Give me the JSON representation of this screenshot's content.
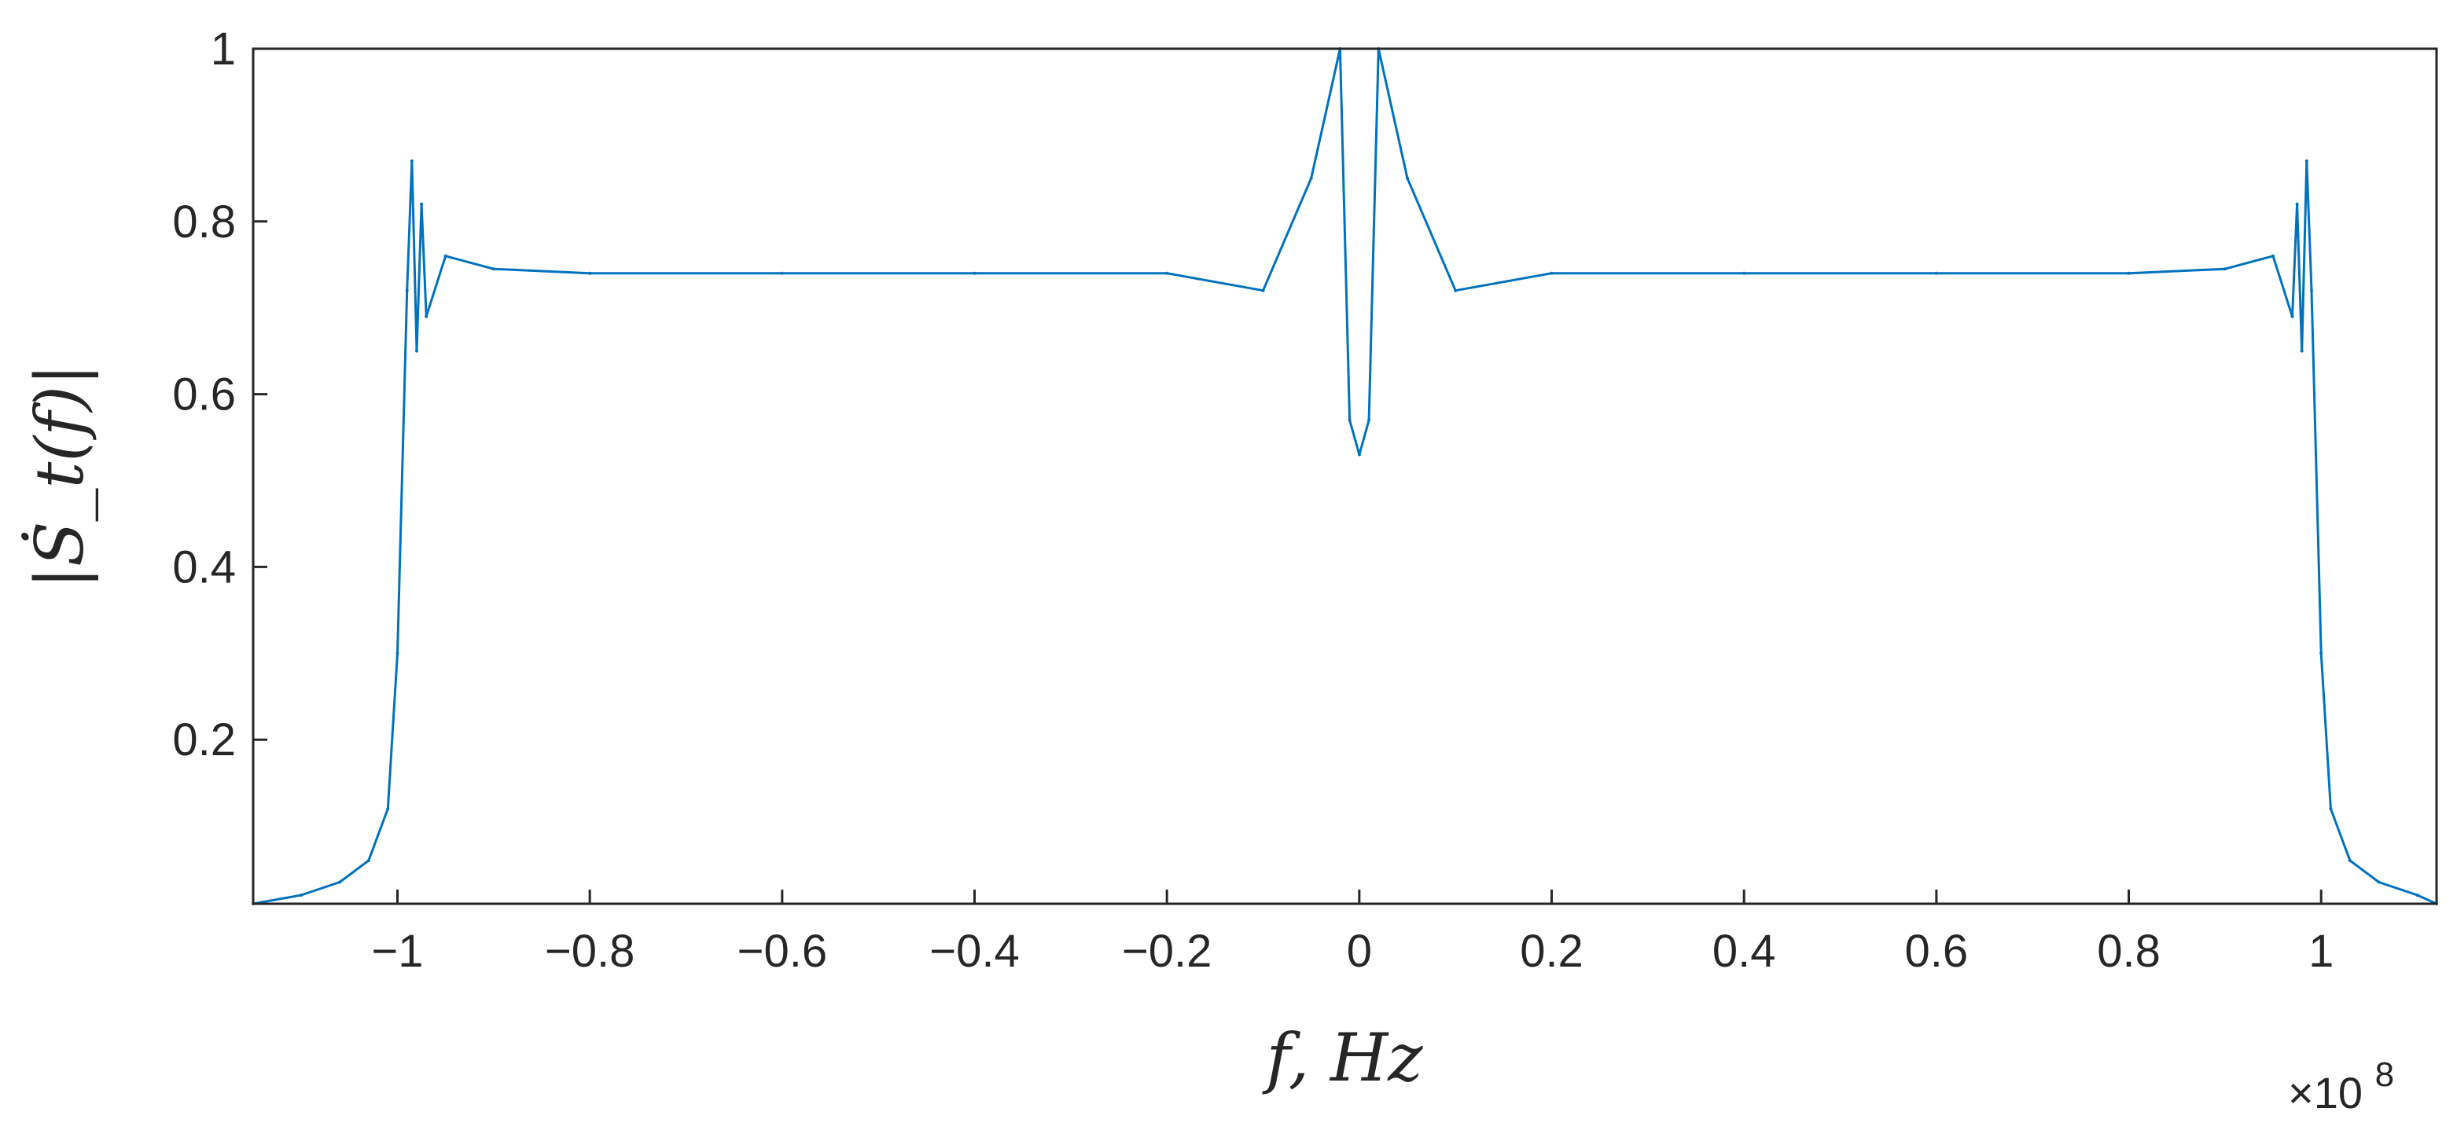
{
  "chart_data": {
    "type": "line",
    "title": "",
    "xlabel": "f, Hz",
    "ylabel": "|Ṡ_t(f)|",
    "x_exponent_label": "×10",
    "x_exponent_power": "8",
    "xlim": [
      -1.15,
      1.12
    ],
    "ylim": [
      0.01,
      1.0
    ],
    "grid": false,
    "line_color": "#0072BD",
    "x_ticks": [
      -1,
      -0.8,
      -0.6,
      -0.4,
      -0.2,
      0,
      0.2,
      0.4,
      0.6,
      0.8,
      1
    ],
    "x_tick_labels": [
      "−1",
      "−0.8",
      "−0.6",
      "−0.4",
      "−0.2",
      "0",
      "0.2",
      "0.4",
      "0.6",
      "0.8",
      "1"
    ],
    "y_ticks": [
      0.2,
      0.4,
      0.6,
      0.8,
      1
    ],
    "y_tick_labels": [
      "0.2",
      "0.4",
      "0.6",
      "0.8",
      "1"
    ],
    "series": [
      {
        "x": [
          -1.15,
          -1.1,
          -1.06,
          -1.03,
          -1.01,
          -1.0,
          -0.99,
          -0.985,
          -0.98,
          -0.975,
          -0.97,
          -0.95,
          -0.9,
          -0.8,
          -0.6,
          -0.4,
          -0.2,
          -0.1,
          -0.05,
          -0.02,
          -0.01,
          0,
          0.01,
          0.02,
          0.05,
          0.1,
          0.2,
          0.4,
          0.6,
          0.8,
          0.9,
          0.95,
          0.97,
          0.975,
          0.98,
          0.985,
          0.99,
          1.0,
          1.01,
          1.03,
          1.06,
          1.1,
          1.12
        ],
        "y": [
          0.01,
          0.02,
          0.035,
          0.06,
          0.12,
          0.3,
          0.72,
          0.87,
          0.65,
          0.82,
          0.69,
          0.76,
          0.745,
          0.74,
          0.74,
          0.74,
          0.74,
          0.72,
          0.85,
          1.0,
          0.57,
          0.53,
          0.57,
          1.0,
          0.85,
          0.72,
          0.74,
          0.74,
          0.74,
          0.74,
          0.745,
          0.76,
          0.69,
          0.82,
          0.65,
          0.87,
          0.72,
          0.3,
          0.12,
          0.06,
          0.035,
          0.02,
          0.01
        ]
      }
    ]
  }
}
